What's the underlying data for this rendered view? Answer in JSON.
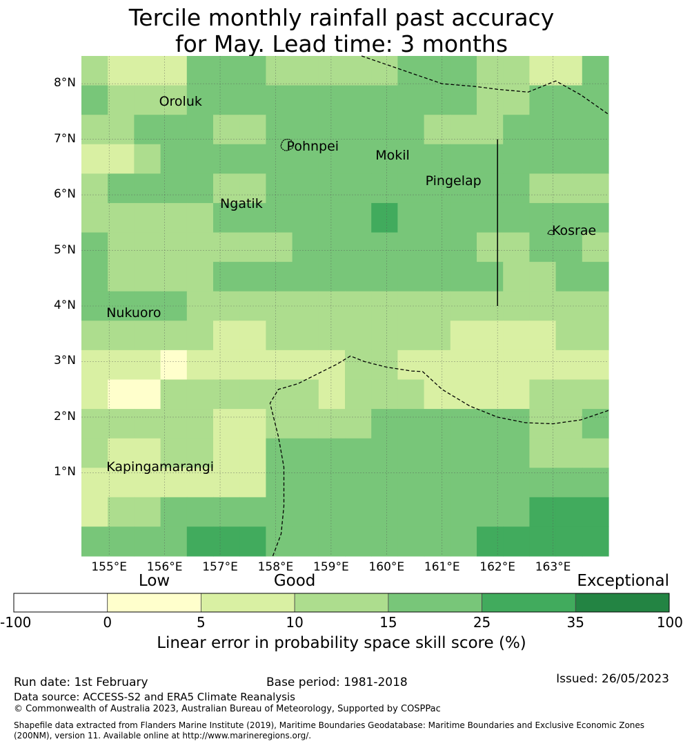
{
  "title": {
    "line1": "Tercile monthly rainfall past accuracy",
    "line2": "for May. Lead time: 3 months"
  },
  "map": {
    "lon_range": [
      154.5,
      164.0
    ],
    "lat_range": [
      -0.5,
      8.5
    ],
    "lon_ticks": [
      {
        "value": 155,
        "label": "155°E"
      },
      {
        "value": 156,
        "label": "156°E"
      },
      {
        "value": 157,
        "label": "157°E"
      },
      {
        "value": 158,
        "label": "158°E"
      },
      {
        "value": 159,
        "label": "159°E"
      },
      {
        "value": 160,
        "label": "160°E"
      },
      {
        "value": 161,
        "label": "161°E"
      },
      {
        "value": 162,
        "label": "162°E"
      },
      {
        "value": 163,
        "label": "163°E"
      }
    ],
    "lat_ticks": [
      {
        "value": 1,
        "label": "1°N"
      },
      {
        "value": 2,
        "label": "2°N"
      },
      {
        "value": 3,
        "label": "3°N"
      },
      {
        "value": 4,
        "label": "4°N"
      },
      {
        "value": 5,
        "label": "5°N"
      },
      {
        "value": 6,
        "label": "6°N"
      },
      {
        "value": 7,
        "label": "7°N"
      },
      {
        "value": 8,
        "label": "8°N"
      }
    ],
    "grid_note": "cell values are skill-score class indices 1-5 (1:0-5, 2:5-10, 3:10-15, 4:15-25, 5:25-35); rows listed north to south",
    "grid": [
      [
        3,
        2,
        2,
        2,
        4,
        4,
        4,
        3,
        3,
        3,
        3,
        3,
        4,
        4,
        4,
        3,
        3,
        2,
        2,
        4
      ],
      [
        4,
        3,
        3,
        3,
        4,
        4,
        4,
        4,
        4,
        4,
        4,
        4,
        4,
        4,
        4,
        3,
        3,
        4,
        4,
        4
      ],
      [
        3,
        3,
        4,
        4,
        4,
        3,
        3,
        4,
        4,
        4,
        4,
        4,
        4,
        3,
        3,
        3,
        4,
        4,
        4,
        4
      ],
      [
        2,
        2,
        3,
        4,
        4,
        4,
        4,
        4,
        4,
        4,
        4,
        4,
        4,
        4,
        4,
        4,
        4,
        4,
        4,
        4
      ],
      [
        3,
        4,
        4,
        4,
        4,
        3,
        3,
        4,
        4,
        4,
        4,
        4,
        4,
        4,
        4,
        4,
        4,
        3,
        3,
        3
      ],
      [
        3,
        3,
        3,
        3,
        3,
        4,
        4,
        4,
        4,
        4,
        4,
        5,
        4,
        4,
        4,
        4,
        4,
        4,
        4,
        4
      ],
      [
        4,
        3,
        3,
        3,
        3,
        3,
        3,
        3,
        4,
        4,
        4,
        4,
        4,
        4,
        4,
        3,
        3,
        4,
        4,
        3
      ],
      [
        4,
        3,
        3,
        3,
        3,
        4,
        4,
        4,
        4,
        4,
        4,
        4,
        4,
        4,
        4,
        4,
        3,
        3,
        4,
        4
      ],
      [
        4,
        4,
        4,
        4,
        3,
        3,
        3,
        3,
        3,
        3,
        3,
        3,
        3,
        3,
        3,
        3,
        3,
        3,
        3,
        3
      ],
      [
        3,
        3,
        3,
        3,
        3,
        2,
        2,
        3,
        3,
        3,
        3,
        3,
        3,
        3,
        2,
        2,
        2,
        2,
        3,
        3
      ],
      [
        2,
        2,
        2,
        1,
        2,
        2,
        2,
        2,
        2,
        2,
        3,
        3,
        2,
        2,
        2,
        2,
        2,
        2,
        2,
        2
      ],
      [
        2,
        1,
        1,
        3,
        3,
        3,
        3,
        3,
        3,
        2,
        3,
        3,
        3,
        2,
        2,
        2,
        2,
        3,
        3,
        3
      ],
      [
        3,
        3,
        3,
        3,
        3,
        2,
        2,
        3,
        3,
        3,
        3,
        4,
        4,
        4,
        4,
        4,
        4,
        3,
        3,
        4
      ],
      [
        3,
        2,
        2,
        3,
        3,
        2,
        2,
        4,
        4,
        4,
        4,
        4,
        4,
        4,
        4,
        4,
        4,
        3,
        3,
        3
      ],
      [
        2,
        2,
        2,
        2,
        2,
        2,
        2,
        4,
        4,
        4,
        4,
        4,
        4,
        4,
        4,
        4,
        4,
        4,
        4,
        4
      ],
      [
        2,
        3,
        3,
        4,
        4,
        4,
        4,
        4,
        4,
        4,
        4,
        4,
        4,
        4,
        4,
        4,
        4,
        5,
        5,
        5
      ],
      [
        4,
        4,
        4,
        4,
        5,
        5,
        5,
        4,
        4,
        4,
        4,
        4,
        4,
        4,
        4,
        5,
        5,
        5,
        5,
        5
      ]
    ],
    "islands": [
      {
        "name": "Oroluk",
        "lon": 155.9,
        "lat": 7.65
      },
      {
        "name": "Pohnpei",
        "lon": 158.2,
        "lat": 6.85
      },
      {
        "name": "Mokil",
        "lon": 159.8,
        "lat": 6.68
      },
      {
        "name": "Pingelap",
        "lon": 160.7,
        "lat": 6.22
      },
      {
        "name": "Ngatik",
        "lon": 157.0,
        "lat": 5.82
      },
      {
        "name": "Kosrae",
        "lon": 162.98,
        "lat": 5.33
      },
      {
        "name": "Nukuoro",
        "lon": 154.95,
        "lat": 3.85
      },
      {
        "name": "Kapingamarangi",
        "lon": 154.95,
        "lat": 1.08
      }
    ],
    "dashed_boundaries": [
      [
        [
          159.55,
          8.5
        ],
        [
          161.0,
          8.0
        ],
        [
          161.6,
          7.95
        ],
        [
          162.0,
          7.9
        ],
        [
          162.55,
          7.85
        ],
        [
          163.05,
          8.05
        ],
        [
          163.5,
          7.8
        ],
        [
          164.0,
          7.45
        ]
      ],
      [
        [
          157.95,
          -0.5
        ],
        [
          158.1,
          -0.1
        ],
        [
          158.15,
          0.4
        ],
        [
          158.15,
          1.1
        ],
        [
          158.05,
          1.65
        ],
        [
          157.95,
          2.05
        ],
        [
          157.9,
          2.25
        ],
        [
          158.05,
          2.5
        ],
        [
          158.4,
          2.6
        ],
        [
          158.8,
          2.8
        ],
        [
          159.1,
          2.95
        ],
        [
          159.35,
          3.1
        ],
        [
          159.6,
          3.0
        ],
        [
          160.0,
          2.9
        ],
        [
          160.45,
          2.83
        ],
        [
          160.65,
          2.82
        ],
        [
          161.0,
          2.5
        ],
        [
          161.5,
          2.2
        ],
        [
          162.0,
          2.0
        ],
        [
          162.5,
          1.9
        ],
        [
          163.0,
          1.88
        ],
        [
          163.5,
          1.95
        ],
        [
          164.0,
          2.12
        ]
      ]
    ],
    "solid_line": [
      [
        162.0,
        4.0
      ],
      [
        162.0,
        7.0
      ]
    ]
  },
  "legend": {
    "categories": [
      {
        "label": "Low",
        "center": 2.5
      },
      {
        "label": "Good",
        "center": 10
      },
      {
        "label": "Exceptional",
        "center": 32.5
      }
    ],
    "bins": [
      {
        "from": -100,
        "to": 0,
        "color": "#ffffff"
      },
      {
        "from": 0,
        "to": 5,
        "color": "#ffffcc"
      },
      {
        "from": 5,
        "to": 10,
        "color": "#d9f0a3"
      },
      {
        "from": 10,
        "to": 15,
        "color": "#addd8e"
      },
      {
        "from": 15,
        "to": 25,
        "color": "#78c679"
      },
      {
        "from": 25,
        "to": 35,
        "color": "#41ab5d"
      },
      {
        "from": 35,
        "to": 100,
        "color": "#238443"
      }
    ],
    "tick_labels": [
      "-100",
      "0",
      "5",
      "10",
      "15",
      "25",
      "35",
      "100"
    ],
    "axis_label": "Linear error in probability space skill score (%)"
  },
  "footer": {
    "run_date": "Run date: 1st February",
    "base_period": "Base period: 1981-2018",
    "issued": "Issued: 26/05/2023",
    "data_source": "Data source: ACCESS-S2 and ERA5 Climate Reanalysis",
    "copyright": "© Commonwealth of Australia 2023, Australian Bureau of Meteorology, Supported by COSPPac",
    "shapefile_line1": "Shapefile data extracted from Flanders Marine Institute (2019), Maritime Boundaries Geodatabase: Maritime Boundaries and Exclusive Economic Zones",
    "shapefile_line2": "(200NM), version 11. Available online at http://www.marineregions.org/."
  }
}
